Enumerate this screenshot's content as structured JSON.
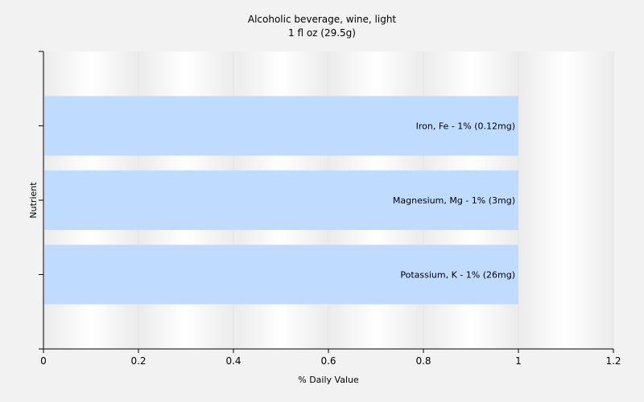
{
  "chart_data": {
    "type": "bar",
    "orientation": "horizontal",
    "title": "Alcoholic beverage, wine, light",
    "subtitle": "1 fl oz (29.5g)",
    "xlabel": "% Daily Value",
    "ylabel": "Nutrient",
    "xlim": [
      0,
      1.2
    ],
    "xticks": [
      "0",
      "0.2",
      "0.4",
      "0.6",
      "0.8",
      "1",
      "1.2"
    ],
    "grid": true,
    "categories": [
      "Iron, Fe",
      "Magnesium, Mg",
      "Potassium, K"
    ],
    "values": [
      1,
      1,
      1
    ],
    "bar_labels": [
      "Iron, Fe - 1% (0.12mg)",
      "Magnesium, Mg - 1% (3mg)",
      "Potassium, K - 1% (26mg)"
    ],
    "colors": {
      "bar": "#bfdbff",
      "plot_bg": "#ffffff",
      "grid": "#e6e6e6",
      "axis": "#000000"
    }
  }
}
